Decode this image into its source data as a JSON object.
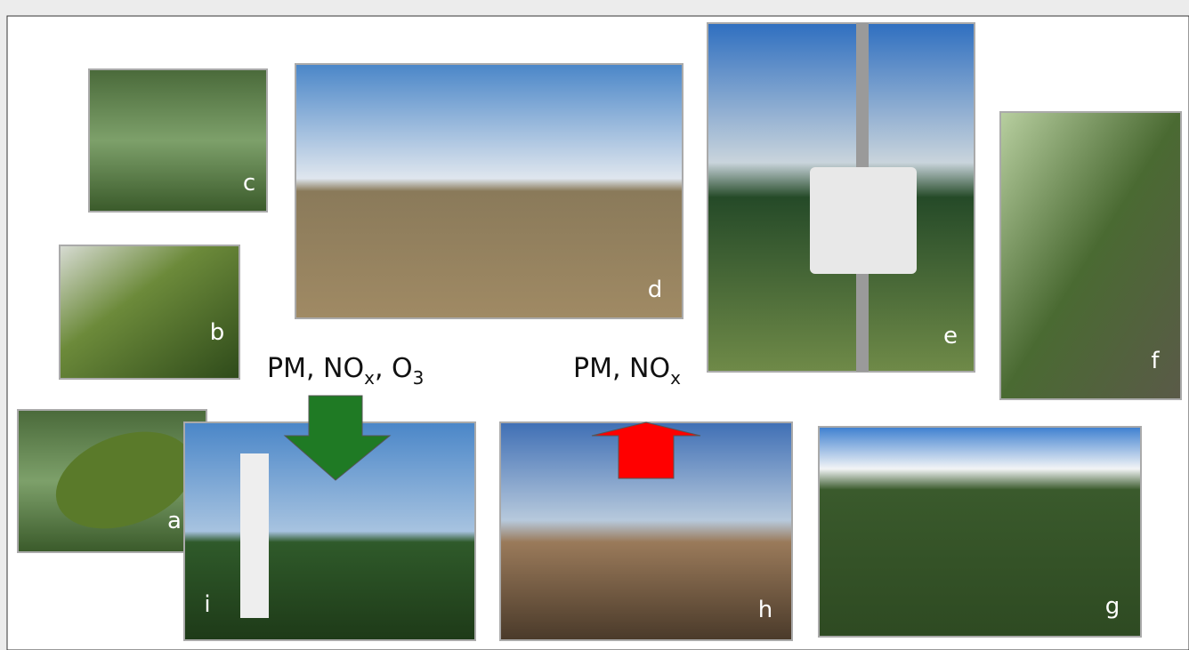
{
  "panels": [
    {
      "label": "a"
    },
    {
      "label": "b"
    },
    {
      "label": "c"
    },
    {
      "label": "d"
    },
    {
      "label": "e"
    },
    {
      "label": "f"
    },
    {
      "label": "g"
    },
    {
      "label": "h"
    },
    {
      "label": "i"
    }
  ],
  "arrows": [
    {
      "parts": [
        "PM, NO",
        "x",
        ", O",
        "3"
      ]
    },
    {
      "parts": [
        "PM, NO",
        "x"
      ]
    }
  ]
}
